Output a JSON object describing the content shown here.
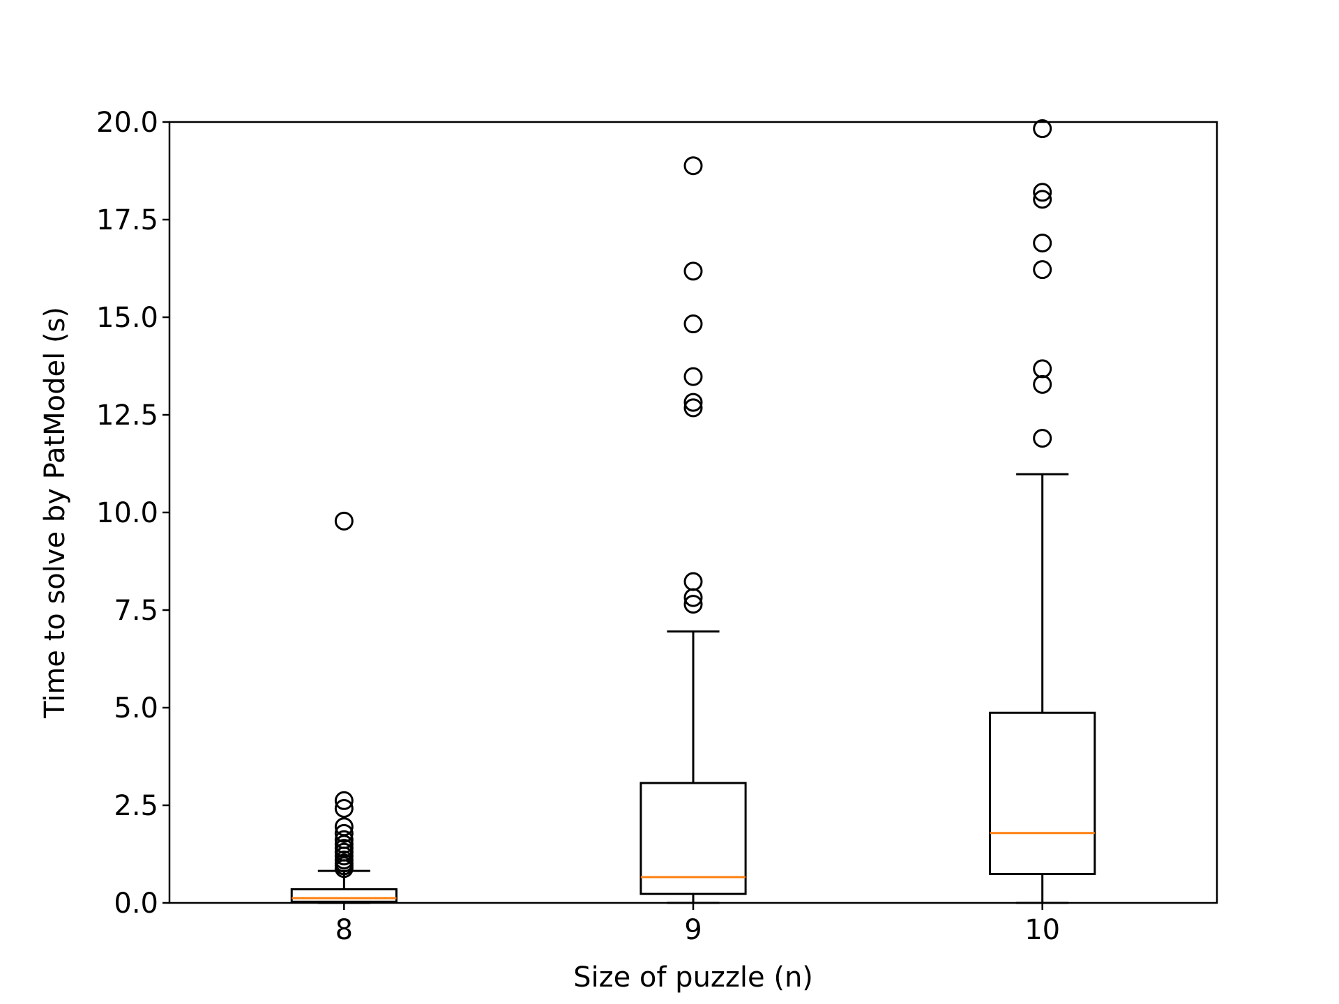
{
  "chart_data": {
    "type": "box",
    "title": "",
    "xlabel": "Size of puzzle (n)",
    "ylabel": "Time to solve by PatModel (s)",
    "ylim": [
      0.0,
      20.0
    ],
    "yticks": [
      "0.0",
      "2.5",
      "5.0",
      "7.5",
      "10.0",
      "12.5",
      "15.0",
      "17.5",
      "20.0"
    ],
    "grid": false,
    "categories": [
      "8",
      "9",
      "10"
    ],
    "boxes": [
      {
        "category": "8",
        "whisker_low": 0.0,
        "q1": 0.03,
        "median": 0.12,
        "q3": 0.35,
        "whisker_high": 0.82,
        "outliers": [
          9.78,
          2.62,
          2.42,
          1.95,
          1.78,
          1.62,
          1.5,
          1.4,
          1.3,
          1.2,
          1.1,
          1.02,
          0.95,
          0.88
        ]
      },
      {
        "category": "9",
        "whisker_low": 0.0,
        "q1": 0.23,
        "median": 0.66,
        "q3": 3.07,
        "whisker_high": 6.95,
        "outliers": [
          18.88,
          16.18,
          14.83,
          13.48,
          12.82,
          12.68,
          8.23,
          7.82,
          7.65
        ]
      },
      {
        "category": "10",
        "whisker_low": 0.0,
        "q1": 0.74,
        "median": 1.79,
        "q3": 4.87,
        "whisker_high": 10.98,
        "outliers": [
          19.83,
          18.2,
          18.02,
          16.9,
          16.22,
          13.68,
          13.28,
          11.9
        ]
      }
    ],
    "colors": {
      "box": "#000000",
      "median": "#ff7f0e",
      "outlier": "#000000"
    }
  }
}
